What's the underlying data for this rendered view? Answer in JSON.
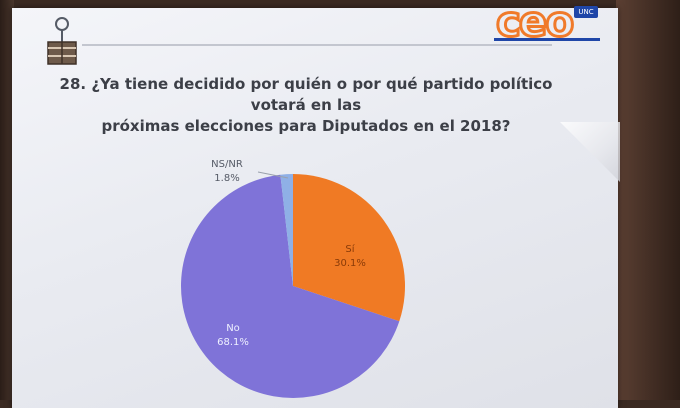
{
  "question": {
    "line1": "28. ¿Ya tiene decidido por quién o por qué partido político votará en las",
    "line2": "próximas elecciones para Diputados en el 2018?"
  },
  "logo": {
    "text": "ceo",
    "badge": "UNC",
    "colors": {
      "primary": "#f07a2a",
      "secondary": "#1f46a8"
    }
  },
  "chart_data": {
    "type": "pie",
    "categories": [
      "Sí",
      "No",
      "NS/NR"
    ],
    "values": [
      30.1,
      68.1,
      1.8
    ],
    "value_labels": [
      "30.1%",
      "68.1%",
      "1.8%"
    ],
    "colors": [
      "#f07a24",
      "#7f73d8",
      "#8fb0e6"
    ],
    "title": "28. ¿Ya tiene decidido por quién o por qué partido político votará en las próximas elecciones para Diputados en el 2018?"
  }
}
